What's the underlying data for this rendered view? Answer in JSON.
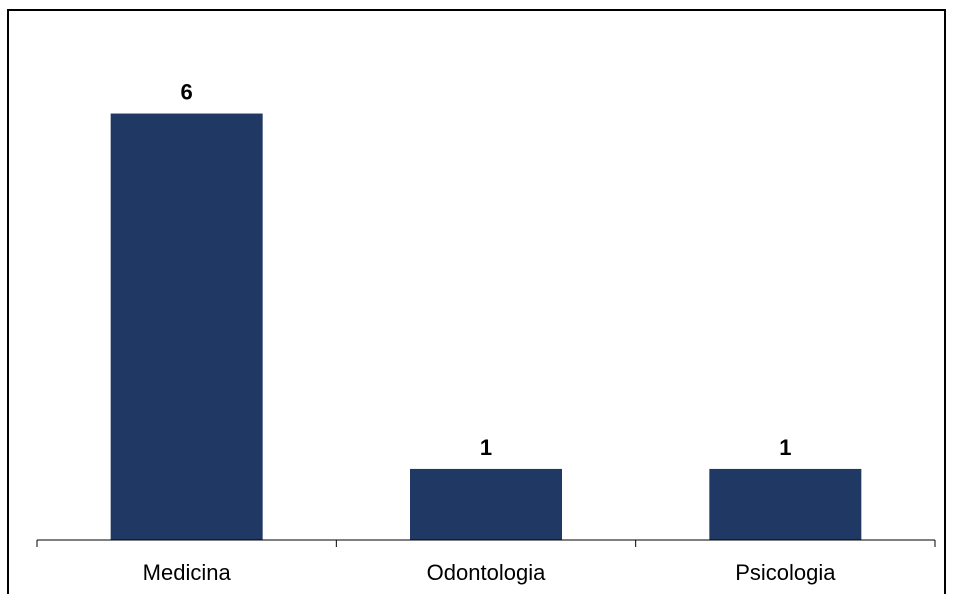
{
  "chart_data": {
    "type": "bar",
    "categories": [
      "Medicina",
      "Odontologia",
      "Psicologia"
    ],
    "values": [
      6,
      1,
      1
    ],
    "data_labels": [
      "6",
      "1",
      "1"
    ],
    "title": "",
    "xlabel": "",
    "ylabel": "",
    "ylim": [
      0,
      6.5
    ],
    "grid": false,
    "legend": "none",
    "bar_color": "#1F3864"
  }
}
